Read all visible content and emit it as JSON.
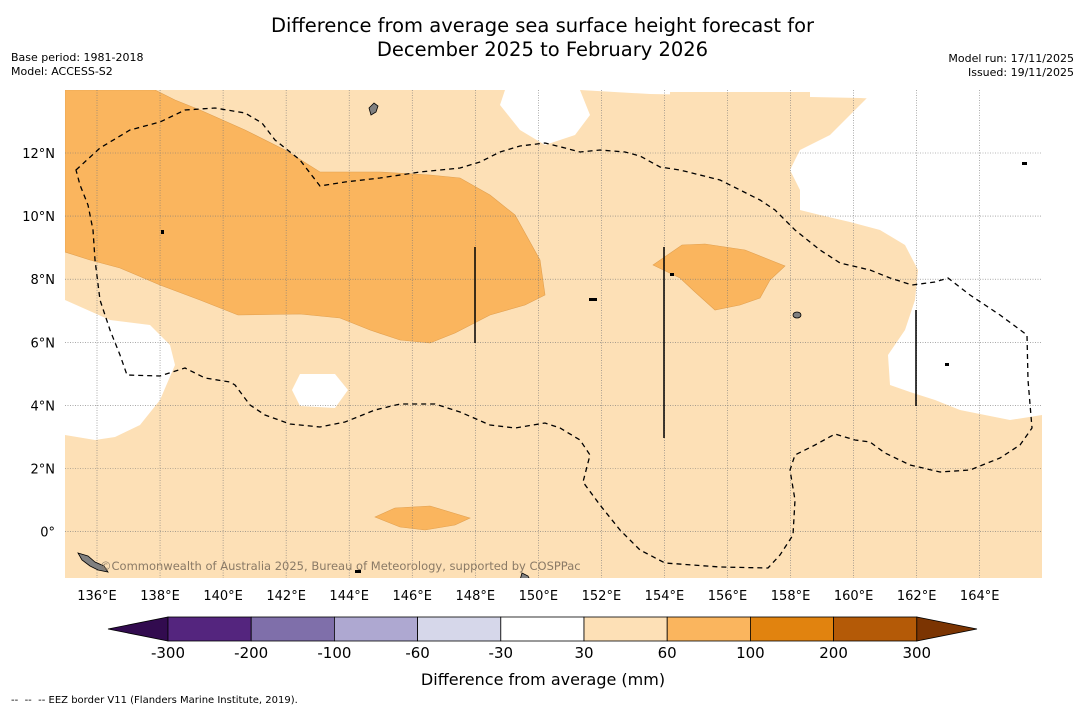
{
  "title": {
    "line1": "Difference from average sea surface height forecast for",
    "line2": "December 2025 to February 2026"
  },
  "meta_left": {
    "base_period": "Base period: 1981-2018",
    "model": "Model: ACCESS-S2"
  },
  "meta_right": {
    "model_run": "Model run: 17/11/2025",
    "issued": "Issued: 19/11/2025"
  },
  "map": {
    "lat_labels": [
      "12°N",
      "10°N",
      "8°N",
      "6°N",
      "4°N",
      "2°N",
      "0°"
    ],
    "lon_labels": [
      "136°E",
      "138°E",
      "140°E",
      "142°E",
      "144°E",
      "146°E",
      "148°E",
      "150°E",
      "152°E",
      "154°E",
      "156°E",
      "158°E",
      "160°E",
      "162°E",
      "164°E"
    ],
    "copyright": "©Commonwealth of Australia 2025, Bureau of Meteorology, supported by COSPPac"
  },
  "colorbar": {
    "colors": [
      "#320b4f",
      "#54257e",
      "#7f6faa",
      "#aea8d1",
      "#d6d7ea",
      "#ffffff",
      "#fde0b6",
      "#fab55e",
      "#e1830f",
      "#b45a07",
      "#7b3402"
    ],
    "tick_labels": [
      "-300",
      "-200",
      "-100",
      "-60",
      "-30",
      "30",
      "60",
      "100",
      "200",
      "300"
    ],
    "label": "Difference from average (mm)"
  },
  "footnote": "--  --  -- EEZ border V11 (Flanders Marine Institute, 2019).",
  "colors": {
    "light_orange": "#fde0b6",
    "mid_orange": "#fab55e",
    "land": "#808080"
  }
}
